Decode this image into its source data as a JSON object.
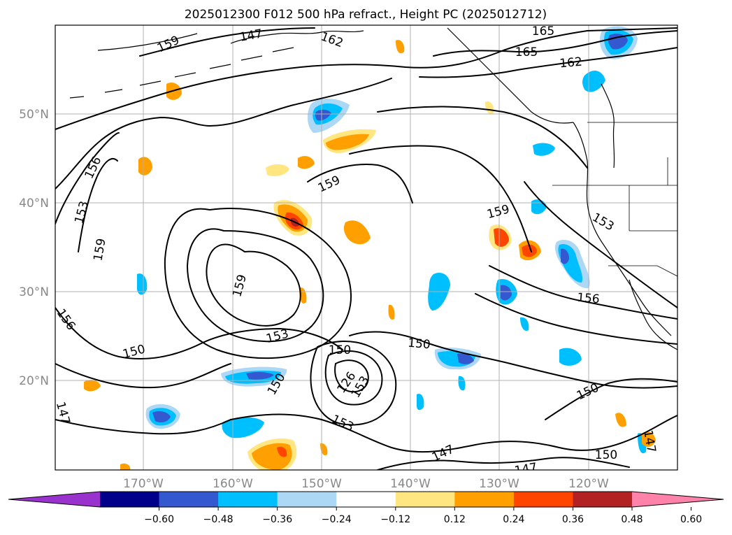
{
  "title": "2025012300 F012 500 hPa refract., Height PC (2025012712)",
  "latitude_labels": [
    "50°N",
    "40°N",
    "30°N",
    "20°N"
  ],
  "longitude_labels": [
    "170°W",
    "160°W",
    "150°W",
    "140°W",
    "130°W",
    "120°W"
  ],
  "colorbar": {
    "ticks": [
      "−0.60",
      "−0.48",
      "−0.36",
      "−0.24",
      "−0.12",
      "0.12",
      "0.24",
      "0.36",
      "0.48",
      "0.60"
    ],
    "tick_values": [
      -0.6,
      -0.48,
      -0.36,
      -0.24,
      -0.12,
      0.12,
      0.24,
      0.36,
      0.48,
      0.6
    ],
    "colors": [
      "#9a32cd",
      "#00008b",
      "#3458d0",
      "#00bfff",
      "#add8f5",
      "#ffffff",
      "#ffe680",
      "#ffa000",
      "#ff4500",
      "#b22222",
      "#ff82ab"
    ]
  },
  "contour_labels": [
    {
      "text": "159"
    },
    {
      "text": "162"
    },
    {
      "text": "165"
    },
    {
      "text": "165"
    },
    {
      "text": "162"
    },
    {
      "text": "156"
    },
    {
      "text": "153"
    },
    {
      "text": "159"
    },
    {
      "text": "159"
    },
    {
      "text": "159"
    },
    {
      "text": "153"
    },
    {
      "text": "159"
    },
    {
      "text": "156"
    },
    {
      "text": "153"
    },
    {
      "text": "150"
    },
    {
      "text": "150"
    },
    {
      "text": "150"
    },
    {
      "text": "150"
    },
    {
      "text": "126"
    },
    {
      "text": "153"
    },
    {
      "text": "153"
    },
    {
      "text": "147"
    },
    {
      "text": "147"
    },
    {
      "text": "150"
    },
    {
      "text": "147"
    },
    {
      "text": "156"
    },
    {
      "text": "147"
    },
    {
      "text": "150"
    },
    {
      "text": "147"
    }
  ]
}
